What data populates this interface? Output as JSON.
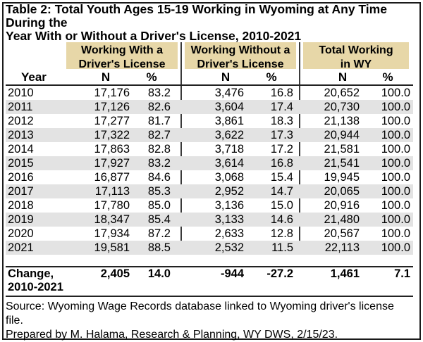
{
  "title_line1": "Table 2: Total Youth Ages 15-19 Working in Wyoming at Any Time During the",
  "title_line2": "Year With or Without a Driver's License, 2010-2021",
  "groups": [
    {
      "line1": "Working With a",
      "line2": "Driver's License"
    },
    {
      "line1": "Working Without a",
      "line2": "Driver's License"
    },
    {
      "line1": "Total Working",
      "line2": "in WY"
    }
  ],
  "year_header": "Year",
  "sub_headers": [
    "N",
    "%",
    "N",
    "%",
    "N",
    "%"
  ],
  "rows": [
    {
      "year": "2010",
      "c1": "17,176",
      "c2": "83.2",
      "c3": "3,476",
      "c4": "16.8",
      "c5": "20,652",
      "c6": "100.0"
    },
    {
      "year": "2011",
      "c1": "17,126",
      "c2": "82.6",
      "c3": "3,604",
      "c4": "17.4",
      "c5": "20,730",
      "c6": "100.0"
    },
    {
      "year": "2012",
      "c1": "17,277",
      "c2": "81.7",
      "c3": "3,861",
      "c4": "18.3",
      "c5": "21,138",
      "c6": "100.0"
    },
    {
      "year": "2013",
      "c1": "17,322",
      "c2": "82.7",
      "c3": "3,622",
      "c4": "17.3",
      "c5": "20,944",
      "c6": "100.0"
    },
    {
      "year": "2014",
      "c1": "17,863",
      "c2": "82.8",
      "c3": "3,718",
      "c4": "17.2",
      "c5": "21,581",
      "c6": "100.0"
    },
    {
      "year": "2015",
      "c1": "17,927",
      "c2": "83.2",
      "c3": "3,614",
      "c4": "16.8",
      "c5": "21,541",
      "c6": "100.0"
    },
    {
      "year": "2016",
      "c1": "16,877",
      "c2": "84.6",
      "c3": "3,068",
      "c4": "15.4",
      "c5": "19,945",
      "c6": "100.0"
    },
    {
      "year": "2017",
      "c1": "17,113",
      "c2": "85.3",
      "c3": "2,952",
      "c4": "14.7",
      "c5": "20,065",
      "c6": "100.0"
    },
    {
      "year": "2018",
      "c1": "17,780",
      "c2": "85.0",
      "c3": "3,136",
      "c4": "15.0",
      "c5": "20,916",
      "c6": "100.0"
    },
    {
      "year": "2019",
      "c1": "18,347",
      "c2": "85.4",
      "c3": "3,133",
      "c4": "14.6",
      "c5": "21,480",
      "c6": "100.0"
    },
    {
      "year": "2020",
      "c1": "17,934",
      "c2": "87.2",
      "c3": "2,633",
      "c4": "12.8",
      "c5": "20,567",
      "c6": "100.0"
    },
    {
      "year": "2021",
      "c1": "19,581",
      "c2": "88.5",
      "c3": "2,532",
      "c4": "11.5",
      "c5": "22,113",
      "c6": "100.0"
    }
  ],
  "change": {
    "label_line1": "Change,",
    "label_line2": "2010-2021",
    "c1": "2,405",
    "c2": "14.0",
    "c3": "-944",
    "c4": "-27.2",
    "c5": "1,461",
    "c6": "7.1"
  },
  "source_line1": "Source: Wyoming Wage Records database linked to Wyoming driver's license file.",
  "source_line2": "Prepared by M. Halama, Research & Planning, WY DWS, 2/15/23.",
  "colors": {
    "header_band": "#e7d7a8",
    "row_shade": "#e3e3e3"
  }
}
